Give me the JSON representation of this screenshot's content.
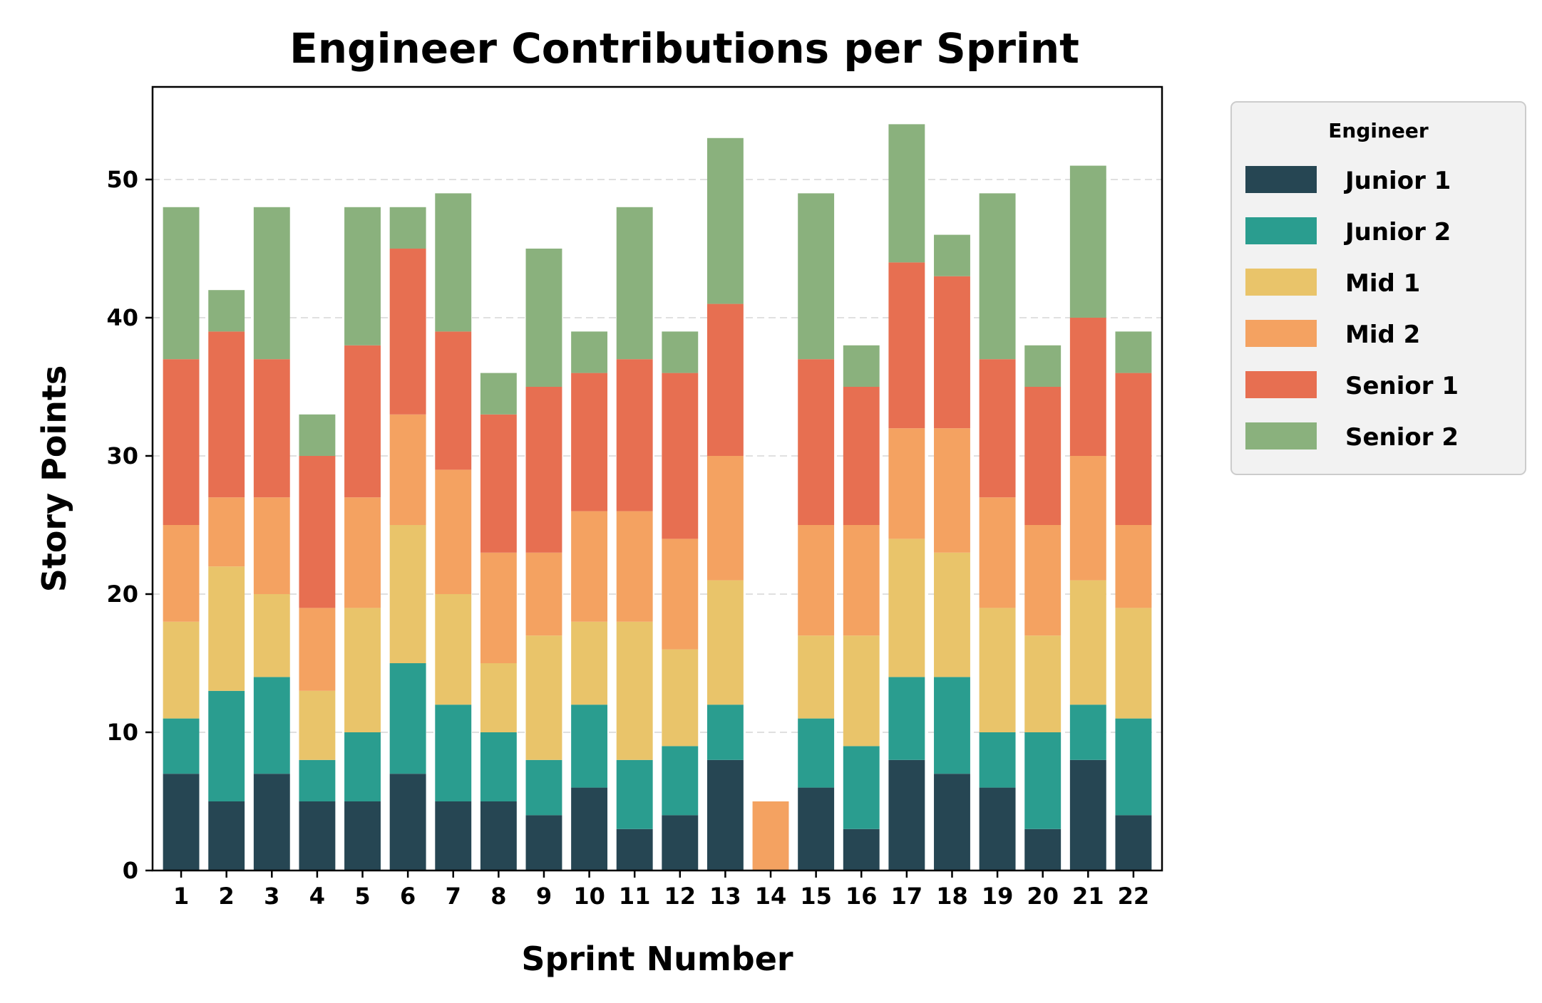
{
  "chart_data": {
    "type": "bar",
    "stacked": true,
    "title": "Engineer Contributions per Sprint",
    "xlabel": "Sprint Number",
    "ylabel": "Story Points",
    "ylim": [
      0,
      56.7
    ],
    "yticks": [
      0,
      10,
      20,
      30,
      40,
      50
    ],
    "grid": "y-dashed",
    "legend": {
      "title": "Engineer",
      "placement": "outside-right"
    },
    "categories": [
      "1",
      "2",
      "3",
      "4",
      "5",
      "6",
      "7",
      "8",
      "9",
      "10",
      "11",
      "12",
      "13",
      "14",
      "15",
      "16",
      "17",
      "18",
      "19",
      "20",
      "21",
      "22"
    ],
    "series": [
      {
        "name": "Junior 1",
        "color": "#264653",
        "values": [
          7,
          5,
          7,
          5,
          5,
          7,
          5,
          5,
          4,
          6,
          3,
          4,
          8,
          0,
          6,
          3,
          8,
          7,
          6,
          3,
          8,
          4
        ]
      },
      {
        "name": "Junior 2",
        "color": "#2a9d8f",
        "values": [
          4,
          8,
          7,
          3,
          5,
          8,
          7,
          5,
          4,
          6,
          5,
          5,
          4,
          0,
          5,
          6,
          6,
          7,
          4,
          7,
          4,
          7
        ]
      },
      {
        "name": "Mid 1",
        "color": "#e9c46a",
        "values": [
          7,
          9,
          6,
          5,
          9,
          10,
          8,
          5,
          9,
          6,
          10,
          7,
          9,
          0,
          6,
          8,
          10,
          9,
          9,
          7,
          9,
          8
        ]
      },
      {
        "name": "Mid 2",
        "color": "#f4a261",
        "values": [
          7,
          5,
          7,
          6,
          8,
          8,
          9,
          8,
          6,
          8,
          8,
          8,
          9,
          5,
          8,
          8,
          8,
          9,
          8,
          8,
          9,
          6
        ]
      },
      {
        "name": "Senior 1",
        "color": "#e76f51",
        "values": [
          12,
          12,
          10,
          11,
          11,
          12,
          10,
          10,
          12,
          10,
          11,
          12,
          11,
          0,
          12,
          10,
          12,
          11,
          10,
          10,
          10,
          11
        ]
      },
      {
        "name": "Senior 2",
        "color": "#8ab17d",
        "values": [
          11,
          3,
          11,
          3,
          10,
          3,
          10,
          3,
          10,
          3,
          11,
          3,
          12,
          0,
          12,
          3,
          10,
          3,
          12,
          3,
          11,
          3
        ]
      }
    ]
  }
}
